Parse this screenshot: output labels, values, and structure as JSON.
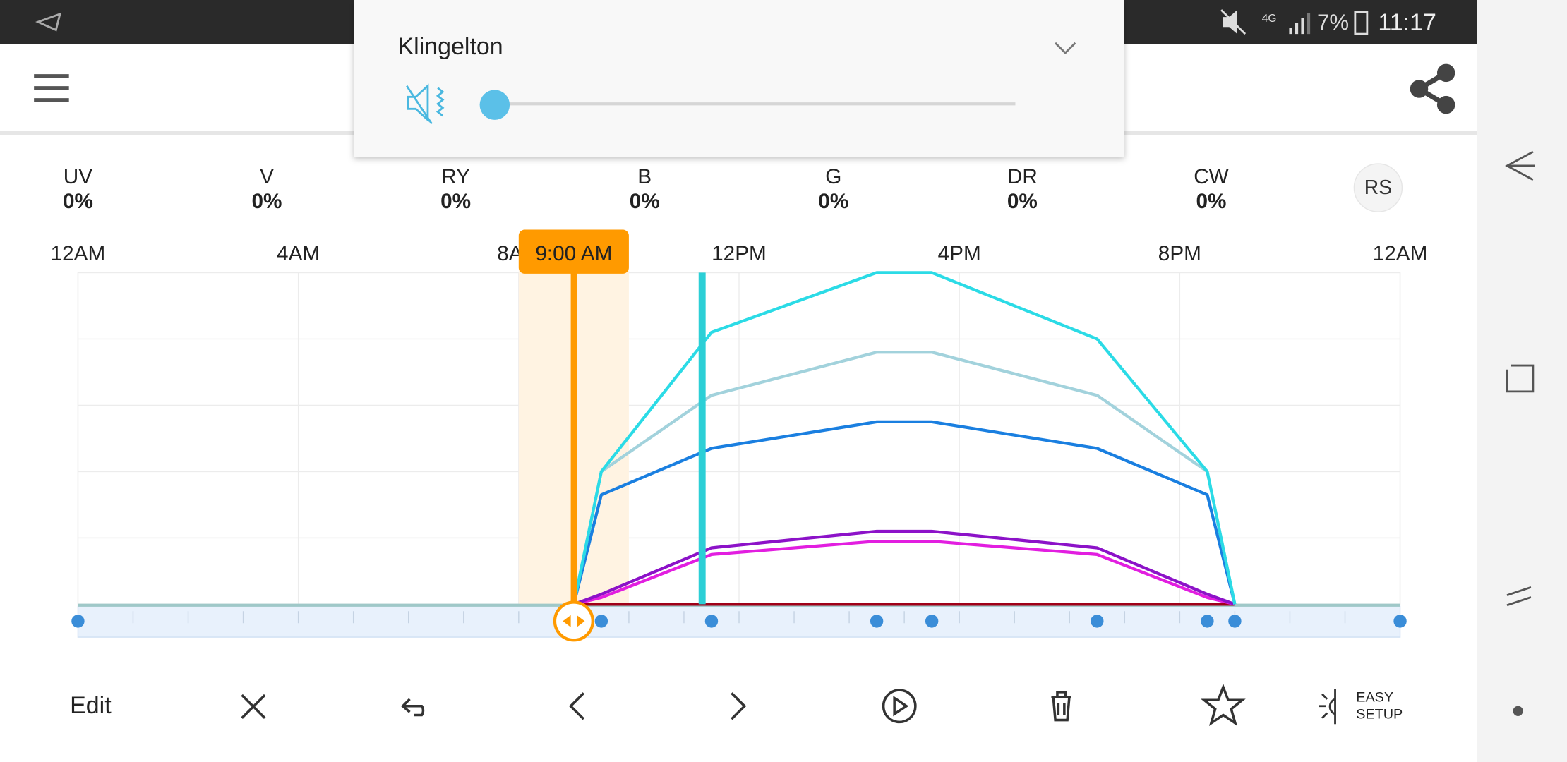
{
  "status_bar": {
    "network": "4G",
    "battery": "7%",
    "time": "11:17"
  },
  "volume_popup": {
    "title": "Klingelton"
  },
  "channels": [
    {
      "name": "UV",
      "value": "0%"
    },
    {
      "name": "V",
      "value": "0%"
    },
    {
      "name": "RY",
      "value": "0%"
    },
    {
      "name": "B",
      "value": "0%"
    },
    {
      "name": "G",
      "value": "0%"
    },
    {
      "name": "DR",
      "value": "0%"
    },
    {
      "name": "CW",
      "value": "0%"
    }
  ],
  "reset_button": "RS",
  "toolbar": {
    "edit": "Edit",
    "easy": "EASY",
    "setup": "SETUP"
  },
  "chart_data": {
    "type": "line",
    "xlim": [
      0,
      24
    ],
    "ylim": [
      0,
      100
    ],
    "xticks": [
      {
        "value": 0,
        "label": "12AM"
      },
      {
        "value": 4,
        "label": "4AM"
      },
      {
        "value": 8,
        "label": "8AM"
      },
      {
        "value": 12,
        "label": "12PM"
      },
      {
        "value": 16,
        "label": "4PM"
      },
      {
        "value": 20,
        "label": "8PM"
      },
      {
        "value": 24,
        "label": "12AM"
      }
    ],
    "yticks": [
      0,
      20,
      40,
      60,
      80,
      100
    ],
    "grid": true,
    "x": [
      9,
      9.5,
      11.5,
      14.5,
      15.5,
      18.5,
      20.5,
      21
    ],
    "series": [
      {
        "color": "#a00018",
        "values": [
          0,
          0,
          0,
          0,
          0,
          0,
          0,
          0
        ]
      },
      {
        "color": "#e21ee0",
        "values": [
          0,
          2,
          15,
          19,
          19,
          15,
          2,
          0
        ]
      },
      {
        "color": "#8c12c8",
        "values": [
          0,
          3,
          17,
          22,
          22,
          17,
          3,
          0
        ]
      },
      {
        "color": "#1a7fe0",
        "values": [
          0,
          33,
          47,
          55,
          55,
          47,
          33,
          0
        ]
      },
      {
        "color": "#a2d2dc",
        "values": [
          0,
          40,
          63,
          76,
          76,
          63,
          40,
          0
        ]
      },
      {
        "color": "#2bdbe6",
        "values": [
          0,
          40,
          82,
          100,
          100,
          80,
          40,
          0
        ]
      }
    ],
    "keyframes": [
      0,
      9.5,
      11.5,
      14.5,
      15.5,
      18.5,
      20.5,
      21,
      24
    ],
    "cursor": {
      "value": 9,
      "label": "9:00 AM",
      "color": "#ff9a00"
    },
    "now": {
      "value": 11.33,
      "color": "#2ccfd6"
    }
  }
}
